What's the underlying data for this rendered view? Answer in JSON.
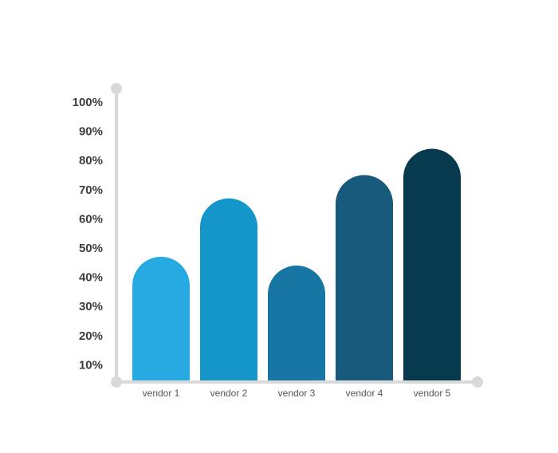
{
  "chart_data": {
    "type": "bar",
    "categories": [
      "vendor 1",
      "vendor 2",
      "vendor 3",
      "vendor 4",
      "vendor 5"
    ],
    "values": [
      47,
      67,
      44,
      75,
      84
    ],
    "y_ticks": [
      "10%",
      "20%",
      "30%",
      "40%",
      "50%",
      "60%",
      "70%",
      "80%",
      "90%",
      "100%"
    ],
    "ylim": [
      0,
      100
    ],
    "grid": false,
    "legend": "none",
    "title": "",
    "xlabel": "",
    "ylabel": "",
    "colors": [
      "#27aae2",
      "#1596ca",
      "#1776a4",
      "#185a7b",
      "#073a4e"
    ],
    "axis_color": "#d9d9d9"
  }
}
